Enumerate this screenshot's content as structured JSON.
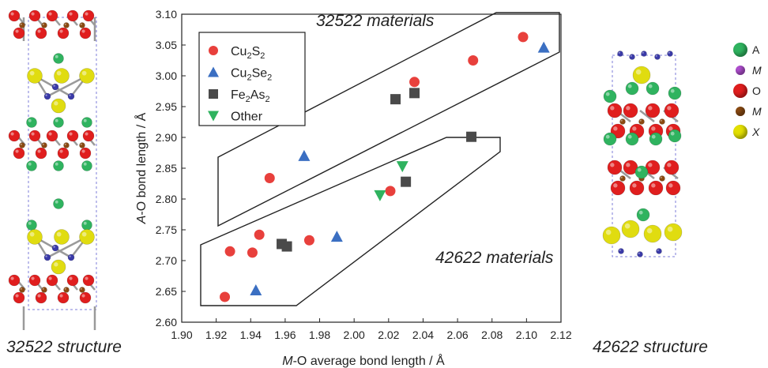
{
  "chart_data": {
    "type": "scatter",
    "xlabel_parts": [
      {
        "text": "M",
        "italic": true
      },
      {
        "text": "-O average bond length / Å",
        "italic": false
      }
    ],
    "ylabel_parts": [
      {
        "text": "A",
        "italic": true
      },
      {
        "text": "-O bond length / Å",
        "italic": false
      }
    ],
    "xlim": [
      1.9,
      2.12
    ],
    "ylim": [
      2.6,
      3.1
    ],
    "xticks": [
      "1.90",
      "1.92",
      "1.94",
      "1.96",
      "1.98",
      "2.00",
      "2.02",
      "2.04",
      "2.06",
      "2.08",
      "2.10",
      "2.12"
    ],
    "yticks": [
      "2.60",
      "2.65",
      "2.70",
      "2.75",
      "2.80",
      "2.85",
      "2.90",
      "2.95",
      "3.00",
      "3.05",
      "3.10"
    ],
    "legend_position": "top-left",
    "series": [
      {
        "name_base": "Cu",
        "name_sub1": "2",
        "name_mid": "S",
        "name_sub2": "2",
        "marker": "circle",
        "color": "#e8403c",
        "x": [
          1.925,
          1.928,
          1.941,
          1.945,
          1.951,
          1.974,
          2.021,
          2.035,
          2.069,
          2.098
        ],
        "y": [
          2.641,
          2.715,
          2.713,
          2.742,
          2.834,
          2.733,
          2.813,
          2.99,
          3.025,
          3.063
        ]
      },
      {
        "name_base": "Cu",
        "name_sub1": "2",
        "name_mid": "Se",
        "name_sub2": "2",
        "marker": "triangle-up",
        "color": "#3b6fc2",
        "x": [
          1.943,
          1.971,
          1.99,
          2.11
        ],
        "y": [
          2.652,
          2.87,
          2.739,
          3.046
        ]
      },
      {
        "name_base": "Fe",
        "name_sub1": "2",
        "name_mid": "As",
        "name_sub2": "2",
        "marker": "square",
        "color": "#4a4a4a",
        "x": [
          1.958,
          1.961,
          2.024,
          2.03,
          2.035,
          2.068
        ],
        "y": [
          2.727,
          2.723,
          2.962,
          2.828,
          2.972,
          2.901
        ]
      },
      {
        "name_base": "Other",
        "name_sub1": "",
        "name_mid": "",
        "name_sub2": "",
        "marker": "triangle-down",
        "color": "#2fb35f",
        "x": [
          2.015,
          2.028
        ],
        "y": [
          2.806,
          2.853
        ]
      }
    ],
    "annotations": [
      {
        "text": "32522 materials"
      },
      {
        "text": "42622 materials"
      }
    ]
  },
  "captions": {
    "left": "32522 structure",
    "right": "42622 structure"
  },
  "structure_legend": [
    {
      "label": "A",
      "italic": false,
      "color": "#2fb35f"
    },
    {
      "label": "M",
      "italic": true,
      "color": "#b04fd0"
    },
    {
      "label": "O",
      "italic": false,
      "color": "#e01e1e"
    },
    {
      "label": "M",
      "italic": true,
      "color": "#8a4a12"
    },
    {
      "label": "X",
      "italic": true,
      "color": "#e3e000"
    }
  ]
}
